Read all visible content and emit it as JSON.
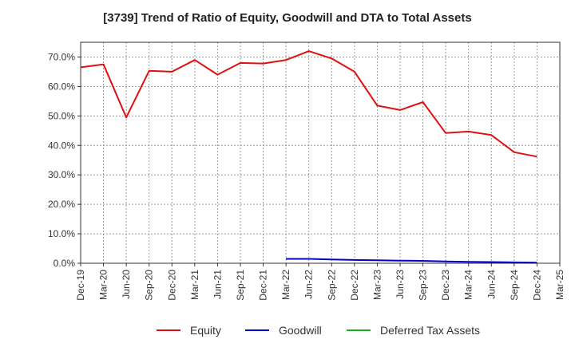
{
  "chart_data": {
    "type": "line",
    "title": "[3739]  Trend of Ratio of Equity, Goodwill and DTA to Total Assets",
    "xlabel": "",
    "ylabel": "",
    "ylim": [
      0,
      75
    ],
    "yticks": [
      0,
      10,
      20,
      30,
      40,
      50,
      60,
      70
    ],
    "ytick_labels": [
      "0.0%",
      "10.0%",
      "20.0%",
      "30.0%",
      "40.0%",
      "50.0%",
      "60.0%",
      "70.0%"
    ],
    "categories": [
      "Dec-19",
      "Mar-20",
      "Jun-20",
      "Sep-20",
      "Dec-20",
      "Mar-21",
      "Jun-21",
      "Sep-21",
      "Dec-21",
      "Mar-22",
      "Jun-22",
      "Sep-22",
      "Dec-22",
      "Mar-23",
      "Jun-23",
      "Sep-23",
      "Dec-23",
      "Mar-24",
      "Jun-24",
      "Sep-24",
      "Dec-24",
      "Mar-25"
    ],
    "grid": true,
    "legend_position": "bottom",
    "series": [
      {
        "name": "Equity",
        "color": "#dd1111",
        "values": [
          66.5,
          67.5,
          49.5,
          65.3,
          65.0,
          69.0,
          64.0,
          68.0,
          67.8,
          69.0,
          72.0,
          69.5,
          65.0,
          53.5,
          52.0,
          54.7,
          44.2,
          44.7,
          43.5,
          37.7,
          36.2,
          null
        ]
      },
      {
        "name": "Goodwill",
        "color": "#0000cc",
        "values": [
          null,
          null,
          null,
          null,
          null,
          null,
          null,
          null,
          null,
          1.5,
          1.5,
          1.3,
          1.1,
          1.0,
          0.9,
          0.8,
          0.6,
          0.5,
          0.4,
          0.3,
          0.2,
          null
        ]
      },
      {
        "name": "Deferred Tax Assets",
        "color": "#22aa22",
        "values": [
          null,
          null,
          null,
          null,
          null,
          null,
          null,
          null,
          null,
          null,
          null,
          null,
          null,
          null,
          null,
          null,
          null,
          null,
          null,
          null,
          null,
          null
        ]
      }
    ]
  }
}
